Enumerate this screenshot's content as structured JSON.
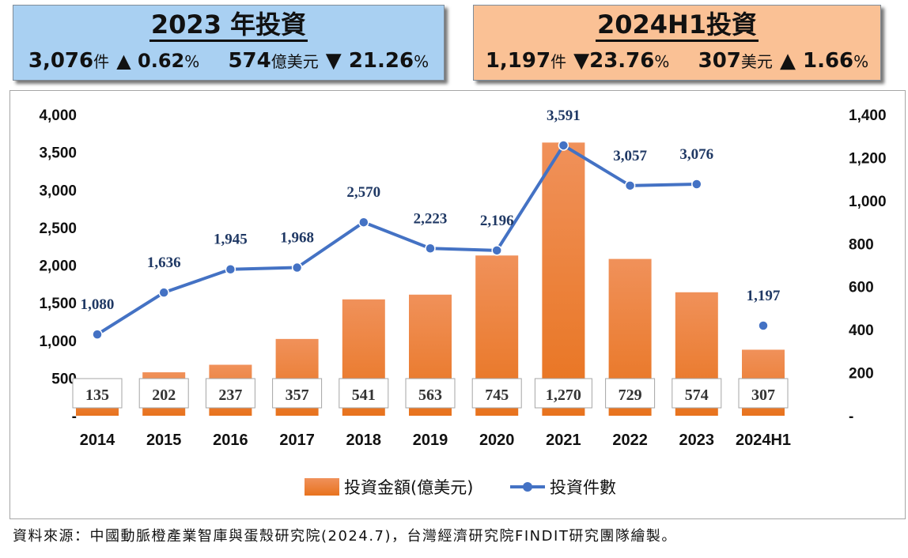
{
  "header_2023": {
    "title": "2023 年投資",
    "cases": "3,076",
    "cases_unit": "件",
    "cases_change": "▲ 0.62",
    "amount": "574",
    "amount_unit": "億美元",
    "amount_change": "▼ 21.26",
    "pct": "%"
  },
  "header_2024": {
    "title": "2024H1投資",
    "cases": "1,197",
    "cases_unit": "件",
    "cases_change": "▼23.76",
    "amount": "307",
    "amount_unit": "美元",
    "amount_change": "▲ 1.66",
    "pct": "%"
  },
  "chart_data": {
    "type": "bar+line",
    "categories": [
      "2014",
      "2015",
      "2016",
      "2017",
      "2018",
      "2019",
      "2020",
      "2021",
      "2022",
      "2023",
      "2024H1"
    ],
    "series": [
      {
        "name": "投資金額(億美元)",
        "type": "bar",
        "axis": "right",
        "values": [
          135,
          202,
          237,
          357,
          541,
          563,
          745,
          1270,
          729,
          574,
          307
        ],
        "color": "#ed7d31"
      },
      {
        "name": "投資件數",
        "type": "line",
        "axis": "left",
        "values": [
          1080,
          1636,
          1945,
          1968,
          2570,
          2223,
          2196,
          3591,
          3057,
          3076,
          1197
        ],
        "value_labels": [
          "1,080",
          "1,636",
          "1,945",
          "1,968",
          "2,570",
          "2,223",
          "2,196",
          "3,591",
          "3,057",
          "3,076",
          "1,197"
        ],
        "color": "#4472c4"
      }
    ],
    "bar_value_labels": [
      "135",
      "202",
      "237",
      "357",
      "541",
      "563",
      "745",
      "1,270",
      "729",
      "574",
      "307"
    ],
    "left_axis": {
      "ylim": [
        0,
        4000
      ],
      "ticks": [
        "-",
        "500",
        "1,000",
        "1,500",
        "2,000",
        "2,500",
        "3,000",
        "3,500",
        "4,000"
      ]
    },
    "right_axis": {
      "ylim": [
        0,
        1400
      ],
      "ticks": [
        "-",
        "200",
        "400",
        "600",
        "800",
        "1,000",
        "1,200",
        "1,400"
      ]
    },
    "line_break_before_last": true,
    "legend": {
      "placement": "bottom-center",
      "bar_label": "投資金額(億美元)",
      "line_label": "投資件數"
    }
  },
  "footer": {
    "source": "資料來源：中國動脈橙產業智庫與蛋殼研究院(2024.7)，台灣經濟研究院FINDIT研究團隊繪製。"
  }
}
